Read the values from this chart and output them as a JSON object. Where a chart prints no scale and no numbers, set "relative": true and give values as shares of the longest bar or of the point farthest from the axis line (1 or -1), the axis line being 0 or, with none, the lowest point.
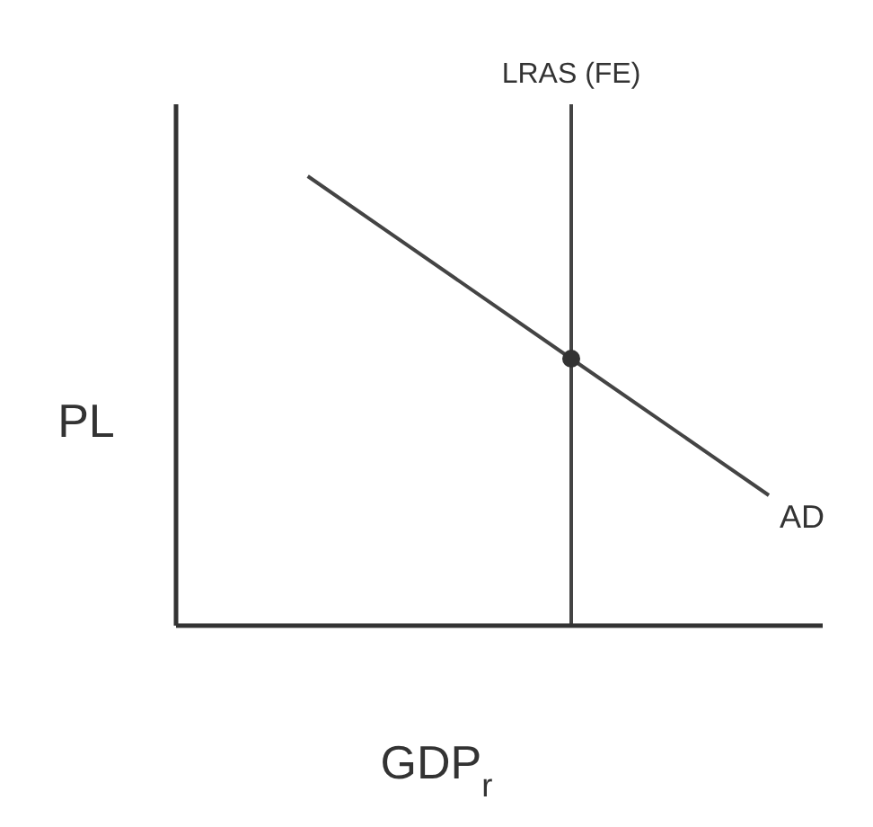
{
  "chart_data": {
    "type": "line",
    "relative": true,
    "xlabel": "GDP$_{r}$",
    "ylabel": "PL",
    "tick_labels": false,
    "grid": false,
    "legend": false,
    "marker": "none",
    "line_style": "solid",
    "categories": [
      null,
      null,
      null,
      null,
      null,
      null,
      null,
      null,
      null,
      null
    ],
    "series": [
      {
        "name": "AD",
        "color": "#444444",
        "values": [
          null,
          null,
          1,
          null,
          null,
          null,
          0.594,
          null,
          null,
          0.29
        ]
      }
    ],
    "ref_lines": [
      {
        "axis": "x",
        "label": "LRAS (FE)",
        "color": "#444444"
      }
    ]
  }
}
